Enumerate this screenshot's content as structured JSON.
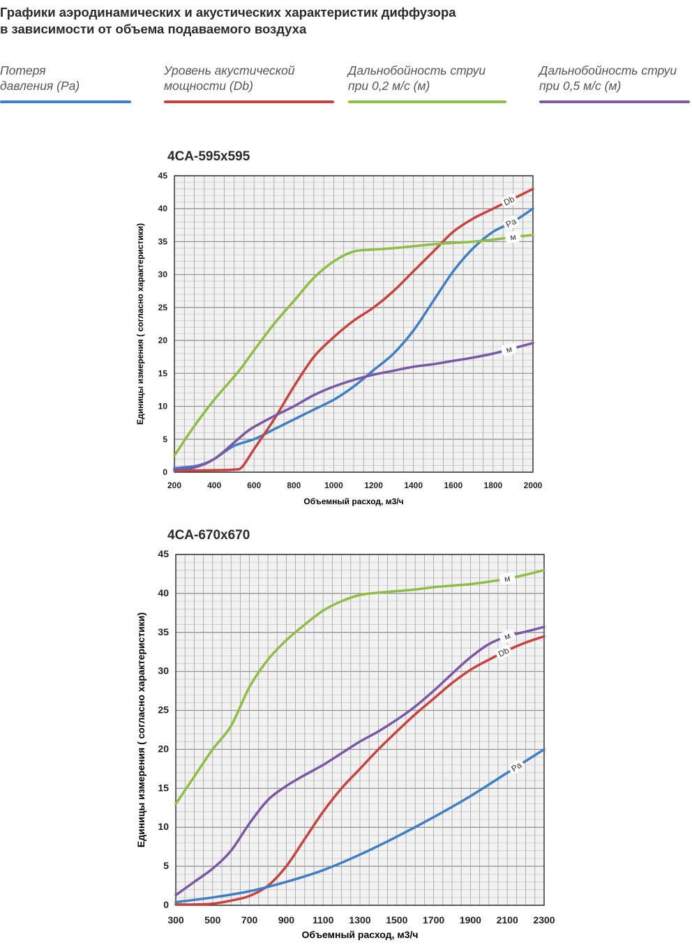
{
  "title_line1": "Графики аэродинамических и акустических характеристик  диффузора",
  "title_line2": "в зависимости от объема подаваемого воздуха",
  "legend": [
    {
      "line1": "Потеря",
      "line2": "давления (Pa)",
      "color": "#3f7fc4"
    },
    {
      "line1": "Уровень акустической",
      "line2": "мощности (Db)",
      "color": "#c9433e"
    },
    {
      "line1": "Дальнобойность струи",
      "line2": "при 0,2 м/с (м)",
      "color": "#8fbe45"
    },
    {
      "line1": "Дальнобойность струи",
      "line2": "при 0,5 м/с (м)",
      "color": "#7b58a6"
    }
  ],
  "chart_data": [
    {
      "type": "line",
      "title": "4CA-595x595",
      "xlabel": "Объемный расход, м3/ч",
      "ylabel": "Единицы измерения ( согласно характеристики)",
      "xlim": [
        200,
        2000
      ],
      "ylim": [
        0,
        45
      ],
      "xticks": [
        200,
        400,
        600,
        800,
        1000,
        1200,
        1400,
        1600,
        1800,
        2000
      ],
      "yticks": [
        0,
        5,
        10,
        15,
        20,
        25,
        30,
        35,
        40,
        45
      ],
      "grid": true,
      "series": [
        {
          "name": "Pa",
          "color": "#3f7fc4",
          "label": "Pa",
          "label_x": 1890,
          "points": [
            [
              200,
              0.6
            ],
            [
              300,
              0.9
            ],
            [
              350,
              1.3
            ],
            [
              400,
              2
            ],
            [
              500,
              4
            ],
            [
              600,
              5
            ],
            [
              700,
              6.5
            ],
            [
              800,
              8
            ],
            [
              900,
              9.5
            ],
            [
              1000,
              11
            ],
            [
              1100,
              13
            ],
            [
              1200,
              15.5
            ],
            [
              1300,
              18
            ],
            [
              1400,
              21.5
            ],
            [
              1500,
              26
            ],
            [
              1600,
              30.5
            ],
            [
              1700,
              34
            ],
            [
              1800,
              36.5
            ],
            [
              1900,
              38
            ],
            [
              2000,
              40
            ]
          ]
        },
        {
          "name": "Db",
          "color": "#c9433e",
          "label": "Db",
          "label_x": 1880,
          "points": [
            [
              200,
              0.2
            ],
            [
              400,
              0.3
            ],
            [
              500,
              0.4
            ],
            [
              540,
              0.8
            ],
            [
              600,
              3.5
            ],
            [
              700,
              8
            ],
            [
              800,
              13
            ],
            [
              900,
              17.5
            ],
            [
              1000,
              20.5
            ],
            [
              1100,
              23
            ],
            [
              1200,
              25
            ],
            [
              1300,
              27.5
            ],
            [
              1400,
              30.5
            ],
            [
              1500,
              33.5
            ],
            [
              1600,
              36.5
            ],
            [
              1700,
              38.5
            ],
            [
              1800,
              40
            ],
            [
              1900,
              41.5
            ],
            [
              2000,
              43
            ]
          ]
        },
        {
          "name": "м (0,2 м/с)",
          "color": "#8fbe45",
          "label": "м",
          "label_x": 1900,
          "points": [
            [
              200,
              2.5
            ],
            [
              300,
              7
            ],
            [
              400,
              11
            ],
            [
              500,
              14.5
            ],
            [
              540,
              16
            ],
            [
              600,
              18.5
            ],
            [
              700,
              22.5
            ],
            [
              800,
              26
            ],
            [
              900,
              29.5
            ],
            [
              1000,
              32
            ],
            [
              1100,
              33.5
            ],
            [
              1200,
              33.8
            ],
            [
              1300,
              34
            ],
            [
              1400,
              34.3
            ],
            [
              1500,
              34.6
            ],
            [
              1600,
              34.8
            ],
            [
              1700,
              35
            ],
            [
              1800,
              35.3
            ],
            [
              1900,
              35.7
            ],
            [
              2000,
              36
            ]
          ]
        },
        {
          "name": "м (0,5 м/с)",
          "color": "#7b58a6",
          "label": "м",
          "label_x": 1880,
          "points": [
            [
              200,
              0.4
            ],
            [
              300,
              0.7
            ],
            [
              400,
              2
            ],
            [
              500,
              4.5
            ],
            [
              580,
              6.5
            ],
            [
              700,
              8.5
            ],
            [
              800,
              10
            ],
            [
              900,
              11.7
            ],
            [
              1000,
              13
            ],
            [
              1100,
              14
            ],
            [
              1200,
              14.8
            ],
            [
              1300,
              15.4
            ],
            [
              1400,
              16
            ],
            [
              1500,
              16.4
            ],
            [
              1600,
              16.9
            ],
            [
              1700,
              17.4
            ],
            [
              1800,
              18
            ],
            [
              1900,
              18.8
            ],
            [
              2000,
              19.6
            ]
          ]
        }
      ]
    },
    {
      "type": "line",
      "title": "4CA-670x670",
      "xlabel": "Объемный расход, м3/ч",
      "ylabel": "Единицы измерения ( согласно характеристики)",
      "xlim": [
        300,
        2300
      ],
      "ylim": [
        0,
        45
      ],
      "xticks": [
        300,
        500,
        700,
        900,
        1100,
        1300,
        1500,
        1700,
        1900,
        2100,
        2300
      ],
      "yticks": [
        0,
        5,
        10,
        15,
        20,
        25,
        30,
        35,
        40,
        45
      ],
      "grid": true,
      "series": [
        {
          "name": "м (0,2 м/с)",
          "color": "#8fbe45",
          "label": "м",
          "label_x": 2100,
          "points": [
            [
              300,
              13
            ],
            [
              400,
              16.5
            ],
            [
              500,
              20
            ],
            [
              600,
              23
            ],
            [
              700,
              28
            ],
            [
              800,
              31.5
            ],
            [
              900,
              34
            ],
            [
              1000,
              36
            ],
            [
              1100,
              37.8
            ],
            [
              1200,
              39
            ],
            [
              1300,
              39.8
            ],
            [
              1400,
              40.1
            ],
            [
              1500,
              40.3
            ],
            [
              1600,
              40.5
            ],
            [
              1700,
              40.8
            ],
            [
              1800,
              41
            ],
            [
              1900,
              41.2
            ],
            [
              2000,
              41.5
            ],
            [
              2100,
              41.9
            ],
            [
              2200,
              42.4
            ],
            [
              2300,
              43
            ]
          ]
        },
        {
          "name": "м (0,5 м/с)",
          "color": "#7b58a6",
          "label": "м",
          "label_x": 2100,
          "points": [
            [
              300,
              1.3
            ],
            [
              400,
              3
            ],
            [
              500,
              4.7
            ],
            [
              600,
              7
            ],
            [
              700,
              10.5
            ],
            [
              800,
              13.5
            ],
            [
              900,
              15.3
            ],
            [
              1000,
              16.7
            ],
            [
              1100,
              18
            ],
            [
              1200,
              19.5
            ],
            [
              1300,
              21
            ],
            [
              1400,
              22.3
            ],
            [
              1500,
              23.8
            ],
            [
              1600,
              25.5
            ],
            [
              1700,
              27.5
            ],
            [
              1800,
              29.7
            ],
            [
              1900,
              31.8
            ],
            [
              2000,
              33.5
            ],
            [
              2100,
              34.5
            ],
            [
              2200,
              35.1
            ],
            [
              2300,
              35.7
            ]
          ]
        },
        {
          "name": "Db",
          "color": "#c9433e",
          "label": "Db",
          "label_x": 2080,
          "points": [
            [
              300,
              0.1
            ],
            [
              400,
              0.1
            ],
            [
              500,
              0.2
            ],
            [
              600,
              0.6
            ],
            [
              700,
              1.2
            ],
            [
              800,
              2.5
            ],
            [
              900,
              5
            ],
            [
              1000,
              8.5
            ],
            [
              1100,
              12
            ],
            [
              1200,
              15
            ],
            [
              1300,
              17.5
            ],
            [
              1400,
              20
            ],
            [
              1500,
              22.3
            ],
            [
              1600,
              24.5
            ],
            [
              1700,
              26.5
            ],
            [
              1800,
              28.5
            ],
            [
              1900,
              30.2
            ],
            [
              2000,
              31.5
            ],
            [
              2100,
              32.7
            ],
            [
              2200,
              33.7
            ],
            [
              2300,
              34.5
            ]
          ]
        },
        {
          "name": "Pa",
          "color": "#3f7fc4",
          "label": "Pa",
          "label_x": 2150,
          "points": [
            [
              300,
              0.4
            ],
            [
              500,
              1
            ],
            [
              700,
              1.8
            ],
            [
              900,
              3
            ],
            [
              1100,
              4.5
            ],
            [
              1300,
              6.5
            ],
            [
              1500,
              8.8
            ],
            [
              1700,
              11.3
            ],
            [
              1900,
              14
            ],
            [
              2100,
              17
            ],
            [
              2300,
              20
            ]
          ]
        }
      ]
    }
  ]
}
